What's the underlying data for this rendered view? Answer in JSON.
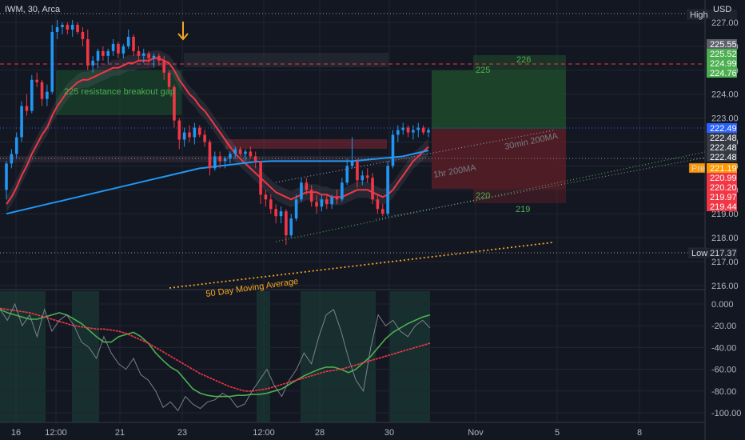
{
  "header": {
    "symbol": "IWM, 30, Arca",
    "currency": "USD"
  },
  "chart_data": [
    {
      "type": "candlestick",
      "title": "IWM, 30, Arca",
      "ylim": [
        216,
        227.5
      ],
      "y_ticks": [
        "227.00",
        "226.00",
        "225.00",
        "224.00",
        "223.00",
        "222.00",
        "221.00",
        "220.00",
        "219.00",
        "218.00",
        "217.00",
        "216.00"
      ],
      "x_ticks": [
        "16",
        "12:00",
        "21",
        "23",
        "12:00",
        "28",
        "30",
        "Nov",
        "5",
        "8"
      ],
      "candles": [
        [
          220,
          221.2,
          219.6,
          221.1
        ],
        [
          221.1,
          221.7,
          220.9,
          221.5
        ],
        [
          221.5,
          222.4,
          221.3,
          222.2
        ],
        [
          222.2,
          223.7,
          222.0,
          223.5
        ],
        [
          223.5,
          224,
          223.1,
          223.3
        ],
        [
          223.3,
          224.8,
          223.2,
          224.6
        ],
        [
          224.6,
          224.9,
          224.3,
          224.5
        ],
        [
          224.5,
          224.6,
          223.5,
          223.8
        ],
        [
          223.8,
          224.4,
          223.5,
          224.1
        ],
        [
          224.1,
          226.9,
          224.0,
          226.6
        ],
        [
          226.6,
          227.1,
          226.3,
          226.8
        ],
        [
          226.8,
          227.0,
          226.5,
          226.9
        ],
        [
          226.9,
          227.0,
          226.5,
          226.7
        ],
        [
          226.7,
          227.1,
          226.4,
          226.9
        ],
        [
          226.9,
          227.0,
          226.5,
          226.6
        ],
        [
          226.6,
          226.8,
          226.0,
          226.3
        ],
        [
          226.3,
          226.7,
          225.0,
          225.2
        ],
        [
          225.2,
          225.6,
          224.9,
          225.4
        ],
        [
          225.4,
          225.9,
          225.1,
          225.8
        ],
        [
          225.8,
          226.0,
          225.4,
          225.6
        ],
        [
          225.6,
          225.9,
          225.3,
          225.8
        ],
        [
          225.8,
          226.3,
          225.6,
          226.1
        ],
        [
          226.1,
          226.2,
          225.5,
          225.7
        ],
        [
          225.7,
          226.1,
          225.5,
          226.0
        ],
        [
          226.0,
          226.7,
          225.9,
          226.4
        ],
        [
          226.4,
          226.5,
          225.6,
          225.8
        ],
        [
          225.8,
          226.0,
          225.4,
          225.6
        ],
        [
          225.6,
          225.9,
          225.3,
          225.7
        ],
        [
          225.7,
          225.8,
          225.2,
          225.5
        ],
        [
          225.5,
          225.7,
          225.1,
          225.6
        ],
        [
          225.6,
          225.7,
          225.2,
          225.4
        ],
        [
          225.4,
          225.6,
          224.6,
          224.9
        ],
        [
          224.9,
          225.0,
          224.0,
          224.3
        ],
        [
          224.3,
          224.4,
          222.6,
          222.9
        ],
        [
          222.9,
          223.0,
          221.7,
          222.1
        ],
        [
          222.1,
          222.6,
          221.8,
          222.4
        ],
        [
          222.4,
          222.7,
          222.0,
          222.2
        ],
        [
          222.2,
          222.8,
          221.9,
          222.6
        ],
        [
          222.6,
          222.7,
          222.2,
          222.3
        ],
        [
          222.3,
          222.5,
          221.8,
          222.0
        ],
        [
          222.0,
          222.1,
          220.6,
          220.9
        ],
        [
          220.9,
          221.6,
          220.8,
          221.4
        ],
        [
          221.4,
          221.6,
          220.9,
          221.2
        ],
        [
          221.2,
          221.4,
          220.9,
          221.3
        ],
        [
          221.3,
          221.6,
          221.1,
          221.5
        ],
        [
          221.5,
          221.8,
          221.3,
          221.7
        ],
        [
          221.7,
          221.8,
          221.4,
          221.5
        ],
        [
          221.5,
          221.7,
          221.2,
          221.6
        ],
        [
          221.6,
          221.8,
          221.3,
          221.4
        ],
        [
          221.4,
          221.6,
          220.9,
          221.2
        ],
        [
          221.2,
          221.2,
          219.4,
          219.8
        ],
        [
          219.8,
          220.0,
          219.3,
          219.6
        ],
        [
          219.6,
          219.8,
          219.0,
          219.2
        ],
        [
          219.2,
          219.4,
          218.6,
          218.9
        ],
        [
          218.9,
          219.3,
          218.6,
          219.1
        ],
        [
          219.1,
          219.2,
          217.7,
          218.1
        ],
        [
          218.1,
          219.0,
          218.0,
          218.8
        ],
        [
          218.8,
          219.8,
          218.7,
          219.6
        ],
        [
          219.6,
          220.5,
          219.5,
          220.3
        ],
        [
          220.3,
          220.5,
          219.8,
          220.0
        ],
        [
          220.0,
          220.2,
          219.3,
          219.5
        ],
        [
          219.5,
          219.8,
          219.0,
          219.3
        ],
        [
          219.3,
          219.8,
          219.1,
          219.6
        ],
        [
          219.6,
          219.8,
          219.2,
          219.4
        ],
        [
          219.4,
          219.8,
          219.2,
          219.7
        ],
        [
          219.7,
          220.0,
          219.4,
          219.6
        ],
        [
          219.6,
          220.5,
          219.5,
          220.3
        ],
        [
          220.3,
          221.3,
          220.2,
          221.0
        ],
        [
          221.0,
          222.2,
          220.9,
          221.2
        ],
        [
          221.2,
          221.3,
          220.1,
          220.4
        ],
        [
          220.4,
          220.8,
          220.2,
          220.6
        ],
        [
          220.6,
          220.9,
          220.3,
          220.5
        ],
        [
          220.5,
          220.7,
          219.4,
          219.6
        ],
        [
          219.6,
          219.8,
          219.0,
          219.2
        ],
        [
          219.2,
          219.4,
          218.9,
          219.0
        ],
        [
          219.0,
          221.2,
          218.9,
          221.0
        ],
        [
          221.0,
          222.5,
          220.9,
          222.3
        ],
        [
          222.3,
          222.7,
          222.0,
          222.5
        ],
        [
          222.5,
          222.8,
          222.3,
          222.6
        ],
        [
          222.6,
          222.7,
          222.2,
          222.4
        ],
        [
          222.4,
          222.7,
          222.1,
          222.5
        ],
        [
          222.5,
          222.8,
          222.2,
          222.6
        ],
        [
          222.6,
          222.7,
          222.3,
          222.4
        ],
        [
          222.4,
          222.6,
          222.2,
          222.5
        ]
      ],
      "series": [
        {
          "values": [
            219.4,
            219.7,
            220.1,
            220.6,
            221.0,
            221.5,
            221.9,
            222.3,
            222.6,
            223.1,
            223.5,
            223.8,
            224.1,
            224.3,
            224.5,
            224.6,
            224.6,
            224.7,
            224.8,
            224.9,
            225.0,
            225.1,
            225.1,
            225.2,
            225.3,
            225.3,
            225.4,
            225.4,
            225.4,
            225.5,
            225.5,
            225.4,
            225.3,
            225.0,
            224.6,
            224.3,
            224.0,
            223.8,
            223.5,
            223.3,
            223.0,
            222.7,
            222.4,
            222.1,
            221.8,
            221.5,
            221.3,
            221.1,
            220.9,
            220.7,
            220.5,
            220.3,
            220.1,
            219.9,
            219.8,
            219.7,
            219.6,
            219.7,
            219.8,
            219.9,
            219.9,
            219.9,
            219.8,
            219.8,
            219.7,
            219.7,
            219.7,
            219.8,
            219.9,
            220.0,
            220.0,
            220.0,
            219.9,
            219.8,
            219.7,
            219.8,
            220.0,
            220.3,
            220.6,
            220.9,
            221.2,
            221.4,
            221.6,
            221.8
          ],
          "color": "#f23645"
        },
        {
          "values": [
            219.0,
            219.05,
            219.1,
            219.15,
            219.2,
            219.25,
            219.3,
            219.35,
            219.4,
            219.45,
            219.5,
            219.55,
            219.6,
            219.65,
            219.7,
            219.75,
            219.8,
            219.85,
            219.9,
            219.95,
            220.0,
            220.05,
            220.1,
            220.15,
            220.2,
            220.25,
            220.3,
            220.35,
            220.4,
            220.45,
            220.5,
            220.55,
            220.6,
            220.65,
            220.7,
            220.75,
            220.8,
            220.85,
            220.9,
            220.92,
            220.95,
            220.97,
            221.0,
            221.02,
            221.05,
            221.07,
            221.1,
            221.12,
            221.15,
            221.17,
            221.18,
            221.19,
            221.2,
            221.2,
            221.2,
            221.2,
            221.2,
            221.2,
            221.2,
            221.2,
            221.2,
            221.2,
            221.2,
            221.2,
            221.2,
            221.2,
            221.2,
            221.2,
            221.2,
            221.22,
            221.24,
            221.26,
            221.28,
            221.3,
            221.32,
            221.34,
            221.36,
            221.38,
            221.4,
            221.45,
            221.5,
            221.55,
            221.6,
            221.65
          ],
          "color": "#2196f3"
        }
      ],
      "annotations": [
        {
          "text": "225 resistance breakout gap",
          "color": "#4caf50"
        },
        {
          "text": "226",
          "color": "#4caf50"
        },
        {
          "text": "225",
          "color": "#4caf50"
        },
        {
          "text": "30min 200MA",
          "color": "#787b86"
        },
        {
          "text": "1hr 200MA",
          "color": "#787b86"
        },
        {
          "text": "220",
          "color": "#4caf50"
        },
        {
          "text": "219",
          "color": "#4caf50"
        },
        {
          "text": "50 Day Moving Average",
          "color": "#f5a623"
        }
      ],
      "price_tags": [
        {
          "label": "",
          "value": "225.55",
          "bg": "#5d606b",
          "fg": "#ffffff"
        },
        {
          "label": "",
          "value": "225.52",
          "bg": "#4caf50",
          "fg": "#ffffff"
        },
        {
          "label": "",
          "value": "224.99",
          "bg": "#4caf50",
          "fg": "#ffffff"
        },
        {
          "label": "",
          "value": "224.76",
          "bg": "#4caf50",
          "fg": "#ffffff"
        },
        {
          "label": "",
          "value": "222.49",
          "bg": "#2962ff",
          "fg": "#ffffff"
        },
        {
          "label": "",
          "value": "222.48",
          "bg": "#363a45",
          "fg": "#ffffff"
        },
        {
          "label": "",
          "value": "222.48",
          "bg": "#363a45",
          "fg": "#ffffff"
        },
        {
          "label": "",
          "value": "222.48",
          "bg": "#363a45",
          "fg": "#ffffff"
        },
        {
          "label": "Pre",
          "value": "221.19",
          "bg": "#ff9800",
          "fg": "#ffffff"
        },
        {
          "label": "",
          "value": "220.99",
          "bg": "#f23645",
          "fg": "#ffffff"
        },
        {
          "label": "",
          "value": "220.20",
          "bg": "#f23645",
          "fg": "#ffffff"
        },
        {
          "label": "",
          "value": "219.97",
          "bg": "#f23645",
          "fg": "#ffffff"
        },
        {
          "label": "",
          "value": "219.44",
          "bg": "#f23645",
          "fg": "#ffffff"
        },
        {
          "label": "Low",
          "value": "217.37",
          "bg": "#1e222d",
          "fg": "#d1d4dc"
        },
        {
          "label": "High",
          "value": "",
          "bg": "#1e222d",
          "fg": "#d1d4dc"
        }
      ]
    },
    {
      "type": "line",
      "ylim": [
        -103,
        3
      ],
      "y_ticks": [
        "0.000",
        "-20.00",
        "-40.00",
        "-60.00",
        "-80.00",
        "-100.00"
      ],
      "series": [
        {
          "values": [
            -5,
            -8,
            -10,
            -12,
            -14,
            -14,
            -12,
            -10,
            -8,
            -10,
            -14,
            -18,
            -24,
            -30,
            -35,
            -35,
            -30,
            -28,
            -26,
            -30,
            -36,
            -45,
            -52,
            -58,
            -62,
            -70,
            -78,
            -82,
            -84,
            -85,
            -85,
            -85,
            -84,
            -84,
            -83,
            -83,
            -82,
            -80,
            -78,
            -74,
            -70,
            -66,
            -63,
            -60,
            -58,
            -58,
            -60,
            -63,
            -60,
            -54,
            -48,
            -40,
            -32,
            -26,
            -22,
            -18,
            -15,
            -12,
            -10
          ],
          "color": "#4caf50"
        },
        {
          "values": [
            -4,
            -5,
            -6,
            -7,
            -8,
            -10,
            -12,
            -14,
            -16,
            -18,
            -20,
            -21,
            -22,
            -23,
            -23,
            -24,
            -25,
            -27,
            -30,
            -33,
            -36,
            -40,
            -44,
            -48,
            -52,
            -56,
            -60,
            -64,
            -67,
            -70,
            -73,
            -76,
            -78,
            -80,
            -80,
            -79,
            -78,
            -76,
            -74,
            -72,
            -70,
            -68,
            -66,
            -64,
            -62,
            -61,
            -60,
            -58,
            -56,
            -54,
            -52,
            -50,
            -48,
            -46,
            -44,
            -42,
            -40,
            -38,
            -36
          ],
          "color": "#f23645"
        },
        {
          "values": [
            -5,
            -15,
            0,
            -20,
            -10,
            -30,
            -5,
            -25,
            -15,
            -10,
            -20,
            -35,
            -40,
            -50,
            -30,
            -45,
            -55,
            -60,
            -50,
            -65,
            -70,
            -80,
            -95,
            -90,
            -98,
            -85,
            -92,
            -96,
            -90,
            -88,
            -82,
            -86,
            -95,
            -92,
            -80,
            -70,
            -60,
            -75,
            -85,
            -70,
            -60,
            -45,
            -55,
            -30,
            -10,
            -5,
            -25,
            -50,
            -70,
            -80,
            -40,
            -10,
            -20,
            -15,
            -25,
            -30,
            -20,
            -15,
            -22
          ],
          "color": "#9598a1"
        }
      ]
    }
  ]
}
